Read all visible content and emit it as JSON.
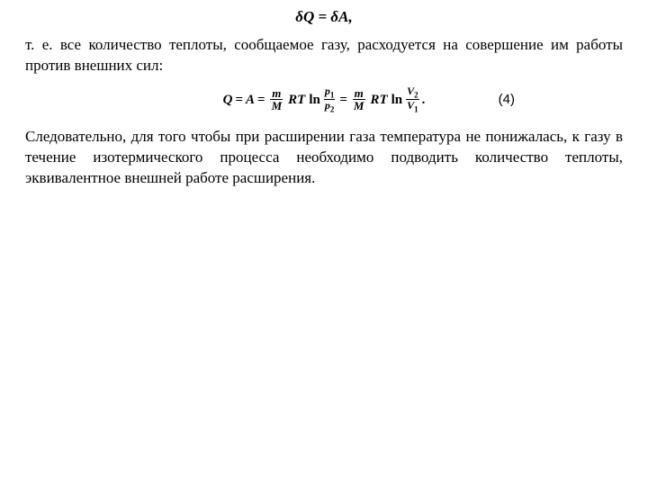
{
  "equation1": {
    "expr": "δQ  =  δA,",
    "fontsize": 17,
    "fontweight": "bold",
    "fontstyle": "italic"
  },
  "paragraph1": "т. е. все количество теплоты, сообщаемое газу, расходуется на совершение им работы против внешних сил:",
  "formula2": {
    "Q": "Q",
    "A": "A",
    "m": "m",
    "M": "M",
    "RT": "RT",
    "ln": "ln",
    "p1": "p",
    "p1sub": "1",
    "p2": "p",
    "p2sub": "2",
    "V2": "V",
    "V2sub": "2",
    "V1": "V",
    "V1sub": "1",
    "eq": "=",
    "dot": "."
  },
  "eqnum": "(4)",
  "paragraph2": "Следовательно, для того чтобы при расширении газа температура не понижалась, к газу в течение изотермического процесса необходимо подводить количество теплоты, эквивалентное внешней работе расширения.",
  "colors": {
    "text": "#000000",
    "background": "#ffffff"
  }
}
